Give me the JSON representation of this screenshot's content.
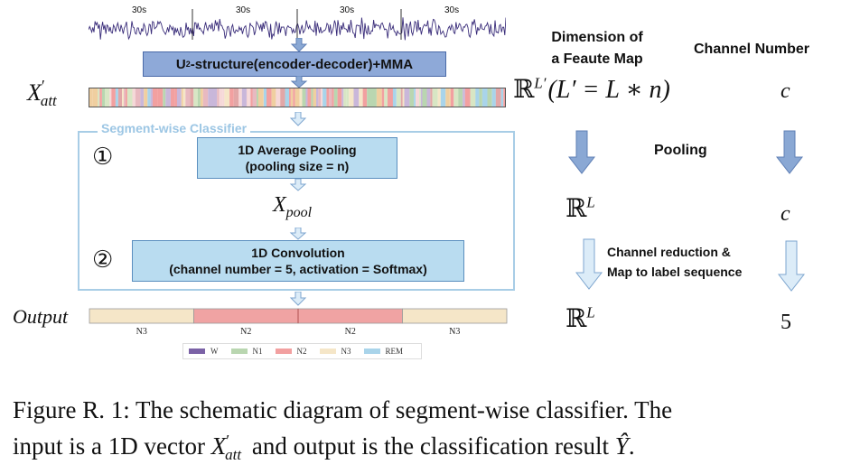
{
  "waveform": {
    "segment_labels": [
      "30s",
      "30s",
      "30s",
      "30s"
    ]
  },
  "encoder_box": {
    "label_pre": "U",
    "label_sup": "2",
    "label_post": "-structure(encoder-decoder)+MMA"
  },
  "x_att": {
    "base": "X",
    "prime": "′",
    "sub": "att"
  },
  "dimension_header": {
    "line1": "Dimension of",
    "line2": "a Feaute Map"
  },
  "channel_header": "Channel Number",
  "dim_att": {
    "bb": "ℝ",
    "sup": "L′",
    "paren": "(L′ = L ∗ n)"
  },
  "channel_att": "c",
  "classifier": {
    "title": "Segment-wise Classifier"
  },
  "step1": {
    "marker": "①",
    "line1": "1D Average Pooling",
    "line2": "(pooling size = n)"
  },
  "x_pool": {
    "base": "X",
    "sub": "pool"
  },
  "step2": {
    "marker": "②",
    "line1": "1D Convolution",
    "line2": "(channel number = 5, activation = Softmax)"
  },
  "pooling_label": "Pooling",
  "dim_pool": {
    "bb": "ℝ",
    "sup": "L"
  },
  "channel_pool": "c",
  "reduction_label": {
    "line1": "Channel reduction &",
    "line2": "Map to label sequence"
  },
  "output": {
    "label": "Output",
    "segments": [
      {
        "label": "N3",
        "color": "#f5e6c8"
      },
      {
        "label": "N2",
        "color": "#f0a3a3"
      },
      {
        "label": "N2",
        "color": "#f0a3a3"
      },
      {
        "label": "N3",
        "color": "#f5e6c8"
      }
    ]
  },
  "dim_out": {
    "bb": "ℝ",
    "sup": "L"
  },
  "channel_out": "5",
  "legend": [
    {
      "label": "W",
      "color": "#7b62a6"
    },
    {
      "label": "N1",
      "color": "#b9d6b0"
    },
    {
      "label": "N2",
      "color": "#f2a0a0"
    },
    {
      "label": "N3",
      "color": "#f5e6c8"
    },
    {
      "label": "REM",
      "color": "#a9d4ea"
    }
  ],
  "caption": {
    "line1": "Figure R. 1: The schematic diagram of segment-wise classifier. The",
    "line2_pre": "input is a 1D vector ",
    "line2_mid": " and output is the classification result ",
    "line2_post": ".",
    "x_base": "X",
    "x_prime": "′",
    "x_sub": "att",
    "y_hat": "Ŷ"
  },
  "colors": {
    "waveform": "#3a2d7a",
    "encoder_fill": "#8ea9d8",
    "encoder_border": "#4a6aa8",
    "classifier_border": "#a8cde6",
    "classifier_title": "#9cc6e4",
    "step_fill": "#b9dcf0",
    "step_border": "#5b8fbf",
    "arrow_dark": "#8aa8d4",
    "arrow_light": "#dcecf8"
  }
}
